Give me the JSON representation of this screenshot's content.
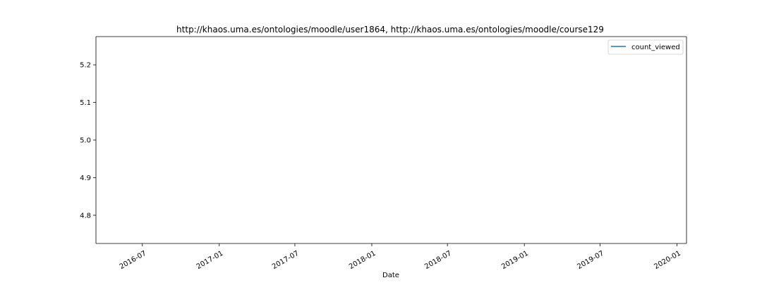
{
  "chart_data": {
    "type": "line",
    "title": "http://khaos.uma.es/ontologies/moodle/user1864, http://khaos.uma.es/ontologies/moodle/course129",
    "xlabel": "Date",
    "ylabel": "",
    "xlim": [
      "2016-03-12",
      "2020-01-24"
    ],
    "ylim": [
      4.725,
      5.275
    ],
    "x_ticks": [
      "2016-07",
      "2017-01",
      "2017-07",
      "2018-01",
      "2018-07",
      "2019-01",
      "2019-07",
      "2020-01"
    ],
    "y_ticks": [
      "4.8",
      "4.9",
      "5.0",
      "5.1",
      "5.2"
    ],
    "series": [
      {
        "name": "count_viewed",
        "color": "#1f77b4",
        "x": [],
        "y": []
      }
    ],
    "legend": "top-right",
    "grid": false
  }
}
